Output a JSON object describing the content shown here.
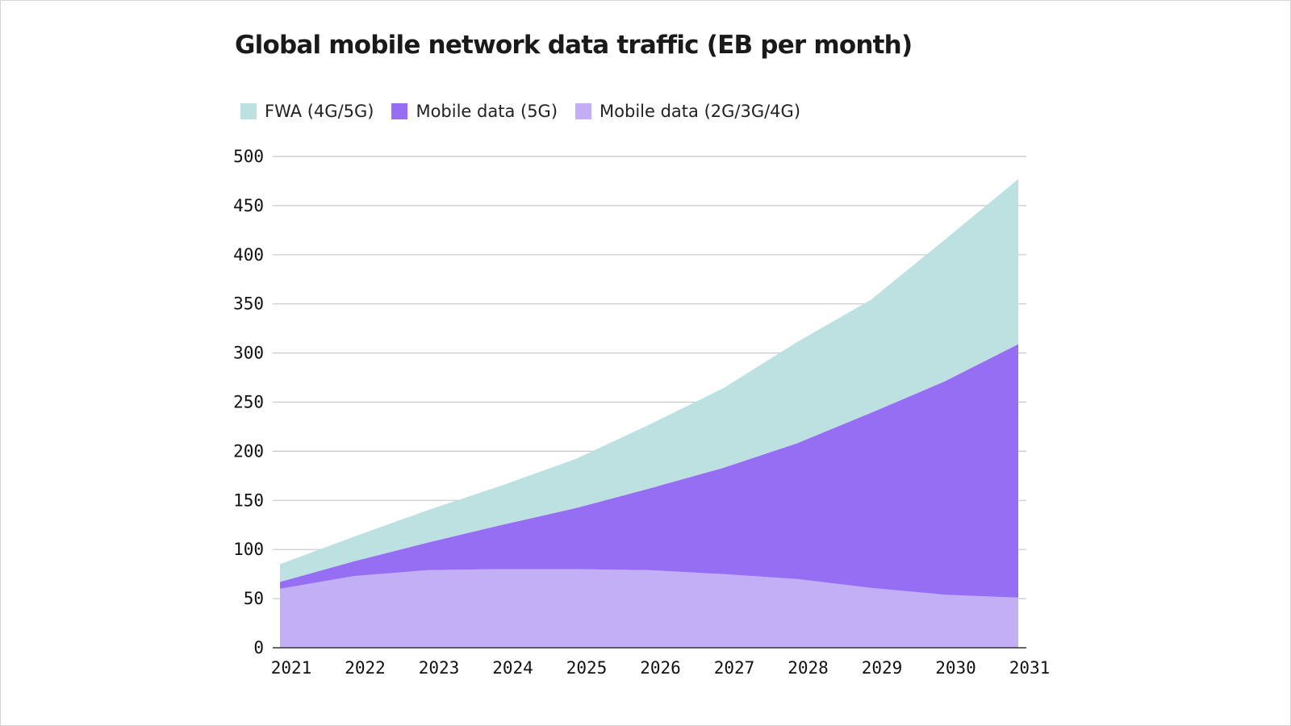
{
  "chart_data": {
    "type": "area",
    "stacked": true,
    "title": "Global mobile network data traffic (EB per month)",
    "xlabel": "",
    "ylabel": "",
    "x": [
      "2021",
      "2022",
      "2023",
      "2024",
      "2025",
      "2026",
      "2027",
      "2028",
      "2029",
      "2030",
      "2031"
    ],
    "ylim": [
      0,
      500
    ],
    "yticks": [
      "0",
      "50",
      "100",
      "150",
      "200",
      "250",
      "300",
      "350",
      "400",
      "450",
      "500"
    ],
    "grid": true,
    "legend_position": "top-left",
    "series": [
      {
        "name": "Mobile data (2G/3G/4G)",
        "color": "#c3aff5",
        "values": [
          60,
          73,
          79,
          80,
          80,
          79,
          75,
          70,
          61,
          54,
          51
        ]
      },
      {
        "name": "Mobile data (5G)",
        "color": "#966ef4",
        "values": [
          7,
          15,
          28,
          45,
          62,
          83,
          108,
          138,
          178,
          217,
          258
        ]
      },
      {
        "name": "FWA (4G/5G)",
        "color": "#bde1e1",
        "values": [
          18,
          25,
          33,
          40,
          50,
          65,
          81,
          103,
          115,
          144,
          168
        ]
      }
    ],
    "legend_order": [
      "FWA (4G/5G)",
      "Mobile data (5G)",
      "Mobile data (2G/3G/4G)"
    ]
  }
}
